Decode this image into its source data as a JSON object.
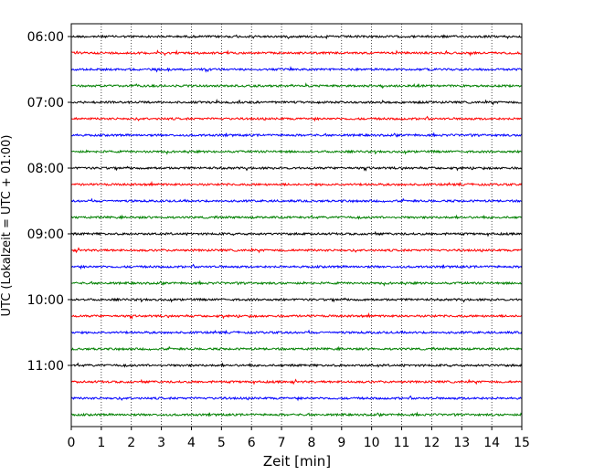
{
  "chart_data": {
    "type": "line",
    "title": "",
    "xlabel": "Zeit  [min]",
    "ylabel": "UTC (Lokalzeit = UTC + 01:00)",
    "xlim": [
      0,
      15
    ],
    "x_ticks": [
      "0",
      "1",
      "2",
      "3",
      "4",
      "5",
      "6",
      "7",
      "8",
      "9",
      "10",
      "11",
      "12",
      "13",
      "14",
      "15"
    ],
    "y_ticks": [
      "06:00",
      "07:00",
      "08:00",
      "09:00",
      "10:00",
      "11:00"
    ],
    "grid": "vertical dotted",
    "row_interval_minutes": 15,
    "start_time": "06:00",
    "row_colors": [
      "#000000",
      "#ff0000",
      "#0000ff",
      "#008000"
    ],
    "rows": 24
  }
}
